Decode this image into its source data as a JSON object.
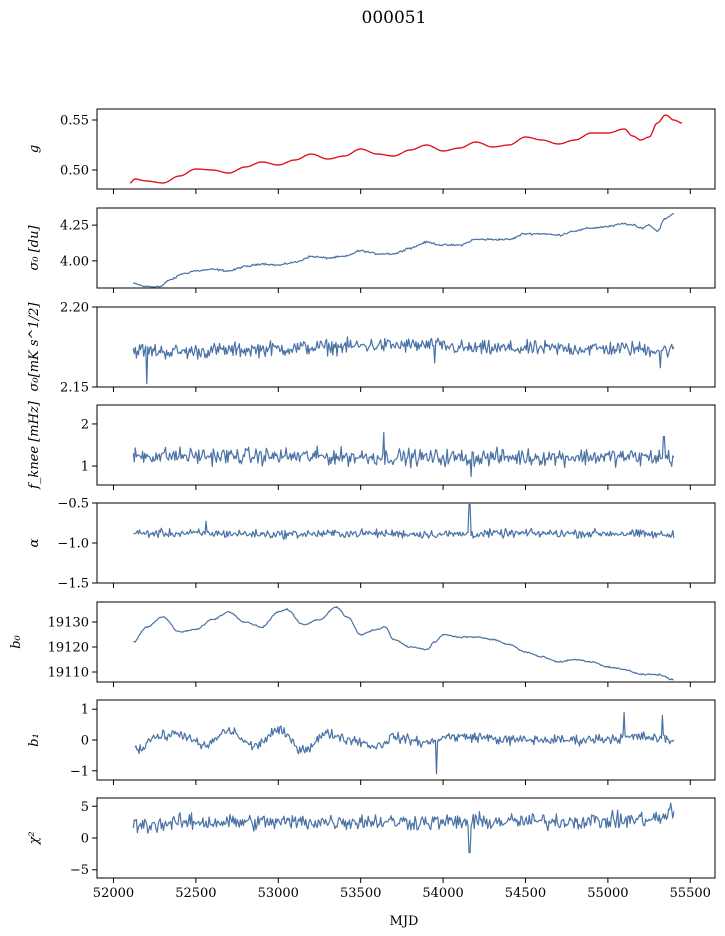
{
  "figure": {
    "title": "000051",
    "xlabel": "MJD"
  },
  "colors": {
    "series": "#4a72a6",
    "highlight": "#ff0000"
  },
  "chart_data": [
    {
      "type": "line",
      "ylabel": "g",
      "ylim": [
        0.481,
        0.561
      ],
      "yticks": [
        "0.50",
        "0.55"
      ],
      "ytick_values": [
        0.5,
        0.55
      ],
      "xlim": [
        51900,
        55650
      ],
      "xticks": [
        "52000",
        "52500",
        "53000",
        "53500",
        "54000",
        "54500",
        "55000",
        "55500"
      ],
      "xtick_values": [
        52000,
        52500,
        53000,
        53500,
        54000,
        54500,
        55000,
        55500
      ],
      "series": [
        {
          "x": [
            52100,
            52130,
            52200,
            52300,
            52400,
            52500,
            52600,
            52700,
            52800,
            52900,
            53000,
            53100,
            53200,
            53300,
            53400,
            53500,
            53600,
            53700,
            53800,
            53900,
            54000,
            54100,
            54200,
            54300,
            54400,
            54500,
            54600,
            54700,
            54800,
            54900,
            55000,
            55100,
            55150,
            55200,
            55250,
            55300,
            55350,
            55400,
            55450
          ],
          "y": [
            0.487,
            0.491,
            0.489,
            0.487,
            0.494,
            0.501,
            0.5,
            0.497,
            0.503,
            0.508,
            0.505,
            0.51,
            0.516,
            0.511,
            0.514,
            0.521,
            0.516,
            0.514,
            0.52,
            0.525,
            0.519,
            0.522,
            0.528,
            0.523,
            0.525,
            0.533,
            0.53,
            0.526,
            0.53,
            0.537,
            0.537,
            0.541,
            0.534,
            0.53,
            0.533,
            0.547,
            0.555,
            0.55,
            0.547
          ],
          "color_role": "highlight"
        }
      ]
    },
    {
      "type": "line",
      "ylabel": "σ₀ [du]",
      "ylim": [
        3.81,
        4.37
      ],
      "yticks": [
        "4.00",
        "4.25"
      ],
      "ytick_values": [
        4.0,
        4.25
      ],
      "series": [
        {
          "x": [
            52120,
            52200,
            52280,
            52350,
            52420,
            52500,
            52600,
            52700,
            52800,
            52900,
            53000,
            53100,
            53200,
            53300,
            53400,
            53500,
            53600,
            53700,
            53800,
            53900,
            54000,
            54100,
            54200,
            54300,
            54400,
            54500,
            54600,
            54700,
            54800,
            54900,
            55000,
            55100,
            55150,
            55200,
            55250,
            55300,
            55350,
            55400
          ],
          "y": [
            3.84,
            3.82,
            3.82,
            3.87,
            3.91,
            3.93,
            3.94,
            3.93,
            3.96,
            3.98,
            3.97,
            3.99,
            4.03,
            4.02,
            4.03,
            4.07,
            4.05,
            4.05,
            4.09,
            4.13,
            4.11,
            4.11,
            4.15,
            4.15,
            4.15,
            4.19,
            4.19,
            4.18,
            4.21,
            4.23,
            4.24,
            4.26,
            4.25,
            4.23,
            4.25,
            4.21,
            4.3,
            4.33
          ],
          "noise": 0.006,
          "color_role": "series"
        }
      ]
    },
    {
      "type": "line",
      "ylabel": "σ₀[mK s^1/2]",
      "ylim": [
        2.15,
        2.2
      ],
      "yticks": [
        "2.15",
        "2.20"
      ],
      "ytick_values": [
        2.15,
        2.2
      ],
      "series": [
        {
          "x": [
            52120,
            52400,
            52700,
            53000,
            53300,
            53600,
            53900,
            54200,
            54500,
            54800,
            55100,
            55400
          ],
          "y": [
            2.173,
            2.172,
            2.173,
            2.174,
            2.175,
            2.176,
            2.176,
            2.174,
            2.174,
            2.174,
            2.174,
            2.173
          ],
          "noise": 0.004,
          "spikes": [
            [
              52200,
              2.152
            ],
            [
              53950,
              2.165
            ],
            [
              55320,
              2.162
            ]
          ],
          "color_role": "series"
        }
      ]
    },
    {
      "type": "line",
      "ylabel": "f_knee [mHz]",
      "ylim": [
        0.55,
        2.45
      ],
      "yticks": [
        "1",
        "2"
      ],
      "ytick_values": [
        1,
        2
      ],
      "series": [
        {
          "x": [
            52120,
            52500,
            53000,
            53500,
            54000,
            54500,
            55000,
            55400
          ],
          "y": [
            1.25,
            1.24,
            1.23,
            1.22,
            1.2,
            1.21,
            1.22,
            1.2
          ],
          "noise": 0.17,
          "spikes": [
            [
              53640,
              1.8
            ],
            [
              54170,
              0.75
            ],
            [
              55340,
              1.7
            ]
          ],
          "color_role": "series"
        }
      ]
    },
    {
      "type": "line",
      "ylabel": "α",
      "ylim": [
        -1.5,
        -0.5
      ],
      "yticks": [
        "−1.5",
        "−1.0",
        "−0.5"
      ],
      "ytick_values": [
        -1.5,
        -1.0,
        -0.5
      ],
      "series": [
        {
          "x": [
            52120,
            52500,
            53000,
            53500,
            54000,
            54500,
            55000,
            55400
          ],
          "y": [
            -0.88,
            -0.88,
            -0.89,
            -0.88,
            -0.89,
            -0.88,
            -0.88,
            -0.9
          ],
          "noise": 0.045,
          "spikes": [
            [
              54160,
              -0.52
            ],
            [
              52560,
              -0.73
            ]
          ],
          "color_role": "series"
        }
      ]
    },
    {
      "type": "line",
      "ylabel": "b₀",
      "ylim": [
        19106,
        19138
      ],
      "yticks": [
        "19110",
        "19120",
        "19130"
      ],
      "ytick_values": [
        19110,
        19120,
        19130
      ],
      "series": [
        {
          "x": [
            52120,
            52200,
            52300,
            52400,
            52500,
            52600,
            52700,
            52800,
            52900,
            53000,
            53050,
            53150,
            53250,
            53350,
            53420,
            53500,
            53600,
            53650,
            53700,
            53800,
            53900,
            53950,
            54000,
            54100,
            54200,
            54300,
            54400,
            54500,
            54600,
            54700,
            54800,
            54900,
            55000,
            55100,
            55200,
            55300,
            55400
          ],
          "y": [
            19122,
            19128,
            19132,
            19126,
            19127,
            19131,
            19134,
            19130,
            19128,
            19134,
            19135,
            19129,
            19131,
            19136,
            19132,
            19125,
            19127,
            19128,
            19123,
            19120,
            19119,
            19122,
            19125,
            19124,
            19124,
            19123,
            19121,
            19118,
            19116,
            19114,
            19115,
            19114,
            19112,
            19111,
            19109,
            19109,
            19107
          ],
          "noise": 0.25,
          "color_role": "series"
        }
      ]
    },
    {
      "type": "line",
      "ylabel": "b₁",
      "ylim": [
        -1.3,
        1.3
      ],
      "yticks": [
        "−1",
        "0",
        "1"
      ],
      "ytick_values": [
        -1,
        0,
        1
      ],
      "series": [
        {
          "x": [
            52130,
            52150,
            52250,
            52400,
            52550,
            52700,
            52850,
            53000,
            53150,
            53300,
            53450,
            53600,
            53700,
            53800,
            53900,
            54000,
            54200,
            54400,
            54600,
            54800,
            55000,
            55200,
            55400
          ],
          "y": [
            -0.2,
            -0.3,
            0.1,
            0.2,
            -0.2,
            0.3,
            -0.2,
            0.3,
            -0.3,
            0.2,
            0.0,
            -0.2,
            0.1,
            0.0,
            -0.1,
            0.1,
            0.1,
            0.0,
            0.0,
            0.0,
            0.05,
            0.1,
            0.0
          ],
          "noise": 0.14,
          "spikes": [
            [
              52125,
              1.2
            ],
            [
              53960,
              -1.1
            ],
            [
              55100,
              0.9
            ],
            [
              55330,
              0.8
            ]
          ],
          "color_role": "series"
        }
      ]
    },
    {
      "type": "line",
      "ylabel": "χ²",
      "ylim": [
        -6.3,
        6.3
      ],
      "yticks": [
        "−5",
        "0",
        "5"
      ],
      "ytick_values": [
        -5,
        0,
        5
      ],
      "series": [
        {
          "x": [
            52120,
            52500,
            53000,
            53500,
            54000,
            54500,
            55000,
            55300,
            55400
          ],
          "y": [
            2.0,
            2.5,
            2.5,
            2.6,
            2.5,
            2.6,
            2.7,
            3.0,
            3.8
          ],
          "noise": 1.1,
          "spikes": [
            [
              54160,
              -2.3
            ],
            [
              55380,
              5.5
            ]
          ],
          "color_role": "series"
        }
      ]
    }
  ]
}
